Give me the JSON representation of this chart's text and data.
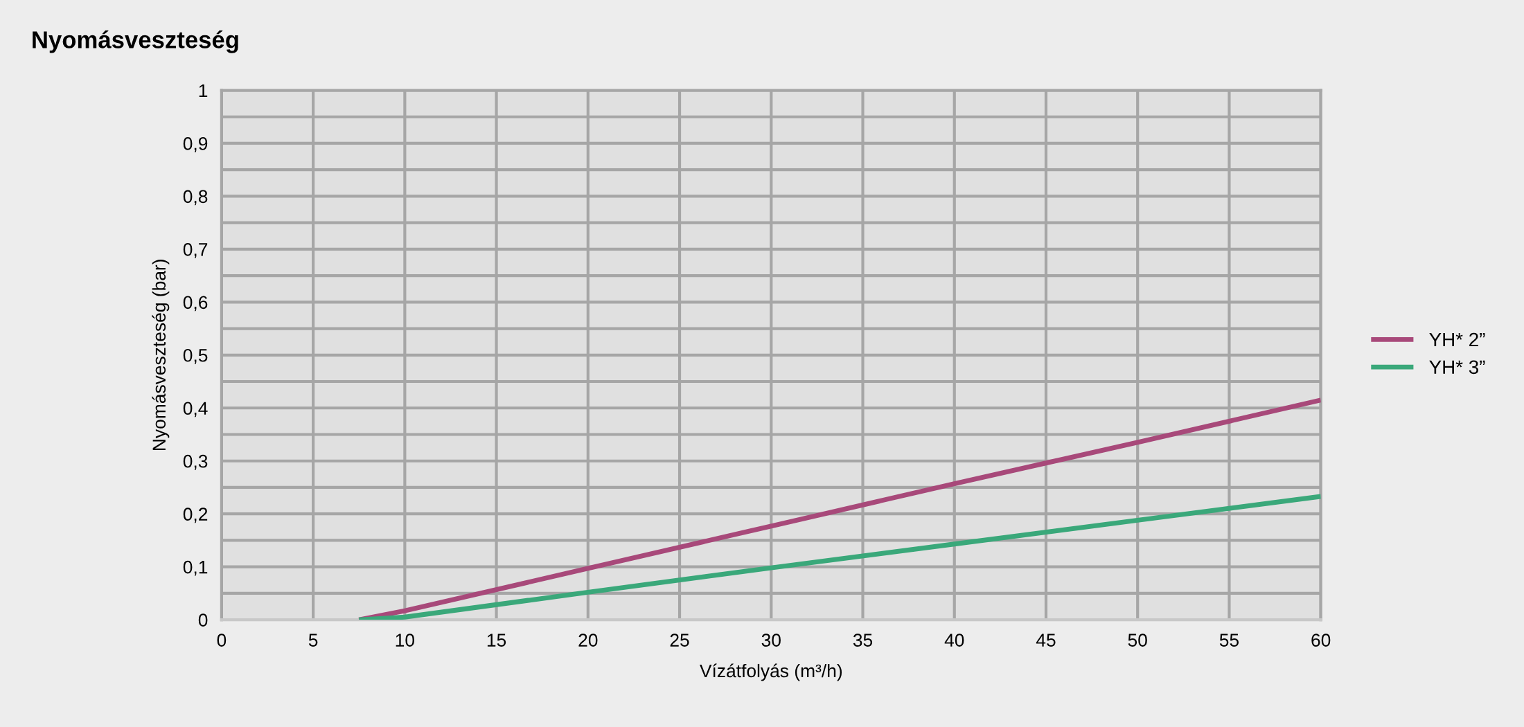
{
  "chart_data": {
    "type": "line",
    "title": "Nyomásveszteség",
    "xlabel": "Vízátfolyás (m³/h)",
    "ylabel": "Nyomásveszteség (bar)",
    "xlim": [
      0,
      60
    ],
    "xticks": [
      0,
      5,
      10,
      15,
      20,
      25,
      30,
      35,
      40,
      45,
      50,
      55,
      60
    ],
    "ylim": [
      0,
      1
    ],
    "yticks": [
      0,
      {
        "value": 0.05,
        "label": null
      },
      {
        "value": 0.1,
        "label": "0,1"
      },
      {
        "value": 0.15,
        "label": null
      },
      {
        "value": 0.2,
        "label": "0,2"
      },
      {
        "value": 0.25,
        "label": null
      },
      {
        "value": 0.3,
        "label": "0,3"
      },
      {
        "value": 0.35,
        "label": null
      },
      {
        "value": 0.4,
        "label": "0,4"
      },
      {
        "value": 0.45,
        "label": null
      },
      {
        "value": 0.5,
        "label": "0,5"
      },
      {
        "value": 0.55,
        "label": null
      },
      {
        "value": 0.6,
        "label": "0,6"
      },
      {
        "value": 0.65,
        "label": null
      },
      {
        "value": 0.7,
        "label": "0,7"
      },
      {
        "value": 0.75,
        "label": null
      },
      {
        "value": 0.8,
        "label": "0,8"
      },
      {
        "value": 0.85,
        "label": null
      },
      {
        "value": 0.9,
        "label": "0,9"
      },
      {
        "value": 0.95,
        "label": null
      },
      1
    ],
    "grid": true,
    "legend": "right",
    "marker": "none",
    "line_style": "solid",
    "series": [
      {
        "name": "YH* 2”",
        "color": "#a8497a",
        "x": [
          7.5,
          10,
          20,
          30,
          40,
          50,
          60
        ],
        "values": [
          0,
          0.017,
          0.097,
          0.177,
          0.257,
          0.335,
          0.415
        ]
      },
      {
        "name": "YH* 3”",
        "color": "#3aa87a",
        "x": [
          7.5,
          10,
          20,
          30,
          40,
          50,
          60
        ],
        "values": [
          0,
          0.005,
          0.052,
          0.098,
          0.143,
          0.188,
          0.233
        ]
      }
    ]
  }
}
